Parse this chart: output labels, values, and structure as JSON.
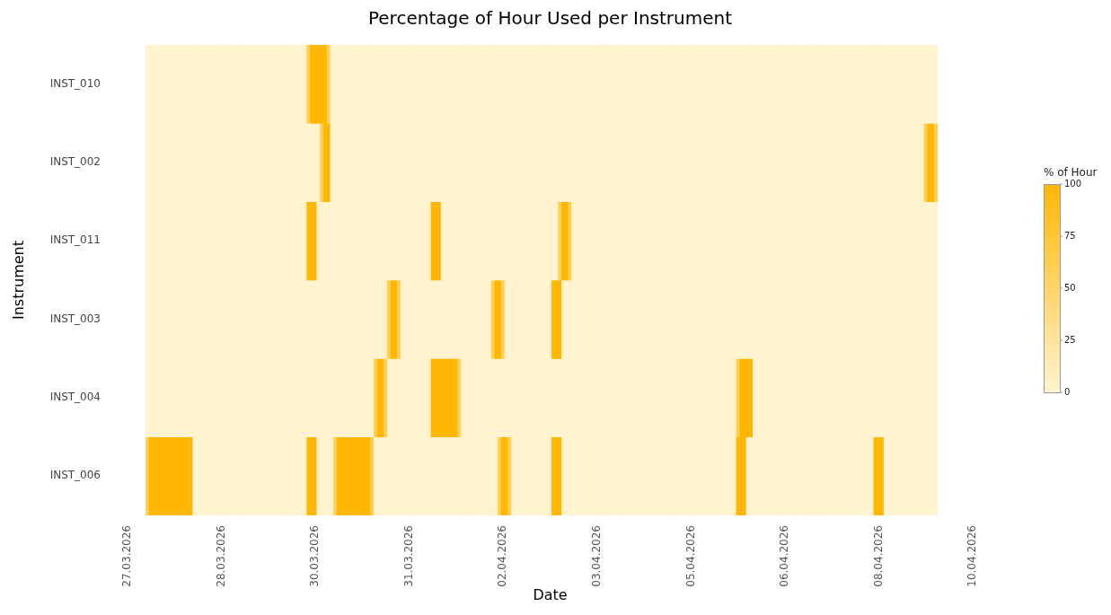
{
  "chart_data": {
    "type": "heatmap",
    "title": "Percentage of Hour Used per Instrument",
    "xlabel": "Date",
    "ylabel": "Instrument",
    "clabel": "% of Hour",
    "categories": [
      "27.03.2026",
      null,
      null,
      null,
      null,
      null,
      null,
      null,
      null,
      null,
      null,
      null,
      null,
      null,
      null,
      null,
      null,
      null,
      null,
      null,
      null,
      null,
      null,
      null,
      null,
      null,
      null,
      null,
      "28.03.2026",
      null,
      null,
      null,
      null,
      null,
      null,
      null,
      null,
      null,
      null,
      null,
      null,
      null,
      null,
      null,
      null,
      null,
      null,
      null,
      null,
      null,
      null,
      null,
      null,
      null,
      null,
      null,
      "30.03.2026",
      null,
      null,
      null,
      null,
      null,
      null,
      null,
      null,
      null,
      null,
      null,
      null,
      null,
      null,
      null,
      null,
      null,
      null,
      null,
      null,
      null,
      null,
      null,
      null,
      null,
      null,
      null,
      "31.03.2026",
      null,
      null,
      null,
      null,
      null,
      null,
      null,
      null,
      null,
      null,
      null,
      null,
      null,
      null,
      null,
      null,
      null,
      null,
      null,
      null,
      null,
      null,
      null,
      null,
      null,
      null,
      null,
      "02.04.2026",
      null,
      null,
      null,
      null,
      null,
      null,
      null,
      null,
      null,
      null,
      null,
      null,
      null,
      null,
      null,
      null,
      null,
      null,
      null,
      null,
      null,
      null,
      null,
      null,
      null,
      null,
      null,
      "03.04.2026",
      null,
      null,
      null,
      null,
      null,
      null,
      null,
      null,
      null,
      null,
      null,
      null,
      null,
      null,
      null,
      null,
      null,
      null,
      null,
      null,
      null,
      null,
      null,
      null,
      null,
      null,
      null,
      "05.04.2026",
      null,
      null,
      null,
      null,
      null,
      null,
      null,
      null,
      null,
      null,
      null,
      null,
      null,
      null,
      null,
      null,
      null,
      null,
      null,
      null,
      null,
      null,
      null,
      null,
      null,
      null,
      null,
      "06.04.2026",
      null,
      null,
      null,
      null,
      null,
      null,
      null,
      null,
      null,
      null,
      null,
      null,
      null,
      null,
      null,
      null,
      null,
      null,
      null,
      null,
      null,
      null,
      null,
      null,
      null,
      null,
      null,
      "08.04.2026",
      null,
      null,
      null,
      null,
      null,
      null,
      null,
      null,
      null,
      null,
      null,
      null,
      null,
      null,
      null,
      null,
      null,
      null,
      null,
      null,
      null,
      null,
      null,
      null,
      null,
      null,
      null,
      "10.04.2026"
    ],
    "y_categories": [
      "INST_010",
      "INST_002",
      "INST_011",
      "INST_003",
      "INST_004",
      "INST_006"
    ],
    "clim": [
      0,
      100
    ],
    "cticks": [
      0,
      25,
      50,
      75,
      100
    ],
    "cells": [
      [
        null,
        null,
        null,
        null,
        null,
        null,
        0,
        0,
        0,
        0,
        0,
        0,
        0,
        0,
        0,
        0,
        0,
        0,
        0,
        0,
        0,
        0,
        0,
        0,
        0,
        0,
        0,
        0,
        0,
        0,
        0,
        0,
        0,
        0,
        0,
        0,
        0,
        0,
        0,
        0,
        0,
        0,
        0,
        0,
        0,
        0,
        0,
        0,
        0,
        0,
        0,
        0,
        0,
        0,
        60,
        100,
        100,
        100,
        100,
        100,
        60,
        0,
        0,
        0,
        0,
        0,
        0,
        0,
        0,
        0,
        0,
        0,
        0,
        0,
        0,
        0,
        0,
        0,
        0,
        0,
        0,
        0,
        0,
        0,
        0,
        0,
        0,
        0,
        0,
        0,
        0,
        0,
        0,
        0,
        0,
        0,
        0,
        0,
        0,
        0,
        0,
        0,
        0,
        0,
        0,
        0,
        0,
        0,
        0,
        0,
        0,
        0,
        0,
        0,
        0,
        0,
        0,
        0,
        0,
        0,
        0,
        0,
        0,
        0,
        0,
        0,
        0,
        0,
        0,
        0,
        0,
        0,
        0,
        0,
        0,
        0,
        0,
        0,
        0,
        0,
        0,
        0,
        0,
        0,
        0,
        0,
        0,
        0,
        0,
        0,
        0,
        0,
        0,
        0,
        0,
        0,
        0,
        0,
        0,
        0,
        0,
        0,
        0,
        0,
        0,
        0,
        0,
        0,
        0,
        0,
        0,
        0,
        0,
        0,
        0,
        0,
        0,
        0,
        0,
        0,
        0,
        0,
        0,
        0,
        0,
        0,
        0,
        0,
        0,
        0,
        0,
        0,
        0,
        0,
        0,
        0,
        0,
        0,
        0,
        0,
        0,
        0,
        0,
        0,
        0,
        0,
        0,
        0,
        0,
        0,
        0,
        0,
        0,
        0,
        0,
        0,
        0,
        0,
        0,
        0,
        0,
        0,
        0,
        0,
        0,
        0,
        0,
        0,
        0,
        0,
        0,
        0,
        0,
        0,
        0,
        0,
        0,
        0,
        0,
        0,
        0,
        0,
        null,
        null,
        null,
        null,
        null,
        null,
        null,
        null,
        null,
        null,
        null
      ],
      [
        null,
        null,
        null,
        null,
        null,
        null,
        0,
        0,
        0,
        0,
        0,
        0,
        0,
        0,
        0,
        0,
        0,
        0,
        0,
        0,
        0,
        0,
        0,
        0,
        0,
        0,
        0,
        0,
        0,
        0,
        0,
        0,
        0,
        0,
        0,
        0,
        0,
        0,
        0,
        0,
        0,
        0,
        0,
        0,
        0,
        0,
        0,
        0,
        0,
        0,
        0,
        0,
        0,
        0,
        0,
        0,
        0,
        0,
        60,
        100,
        100,
        0,
        0,
        0,
        0,
        0,
        0,
        0,
        0,
        0,
        0,
        0,
        0,
        0,
        0,
        0,
        0,
        0,
        0,
        0,
        0,
        0,
        0,
        0,
        0,
        0,
        0,
        0,
        0,
        0,
        0,
        0,
        0,
        0,
        0,
        0,
        0,
        0,
        0,
        0,
        0,
        0,
        0,
        0,
        0,
        0,
        0,
        0,
        0,
        0,
        0,
        0,
        0,
        0,
        0,
        0,
        0,
        0,
        0,
        0,
        0,
        0,
        0,
        0,
        0,
        0,
        0,
        0,
        0,
        0,
        0,
        0,
        0,
        0,
        0,
        0,
        0,
        0,
        0,
        0,
        0,
        0,
        0,
        0,
        0,
        0,
        0,
        0,
        0,
        0,
        0,
        0,
        0,
        0,
        0,
        0,
        0,
        0,
        0,
        0,
        0,
        0,
        0,
        0,
        0,
        0,
        0,
        0,
        0,
        0,
        0,
        0,
        0,
        0,
        0,
        0,
        0,
        0,
        0,
        0,
        0,
        0,
        0,
        0,
        0,
        0,
        0,
        0,
        0,
        0,
        0,
        0,
        0,
        0,
        0,
        0,
        0,
        0,
        0,
        0,
        0,
        0,
        0,
        0,
        0,
        0,
        0,
        0,
        0,
        0,
        0,
        0,
        0,
        0,
        0,
        0,
        0,
        0,
        0,
        0,
        0,
        0,
        0,
        0,
        0,
        0,
        0,
        0,
        0,
        0,
        0,
        0,
        0,
        0,
        0,
        0,
        0,
        0,
        60,
        100,
        100,
        60,
        null,
        null,
        null,
        null,
        null,
        null,
        null,
        null,
        null,
        null,
        null
      ],
      [
        null,
        null,
        null,
        null,
        null,
        null,
        0,
        0,
        0,
        0,
        0,
        0,
        0,
        0,
        0,
        0,
        0,
        0,
        0,
        0,
        0,
        0,
        0,
        0,
        0,
        0,
        0,
        0,
        0,
        0,
        0,
        0,
        0,
        0,
        0,
        0,
        0,
        0,
        0,
        0,
        0,
        0,
        0,
        0,
        0,
        0,
        0,
        0,
        0,
        0,
        0,
        0,
        0,
        0,
        100,
        100,
        100,
        0,
        0,
        0,
        0,
        0,
        0,
        0,
        0,
        0,
        0,
        0,
        0,
        0,
        0,
        0,
        0,
        0,
        0,
        0,
        0,
        0,
        0,
        0,
        0,
        0,
        0,
        0,
        0,
        0,
        0,
        0,
        0,
        0,
        0,
        100,
        100,
        100,
        0,
        0,
        0,
        0,
        0,
        0,
        0,
        0,
        0,
        0,
        0,
        0,
        0,
        0,
        0,
        0,
        0,
        0,
        0,
        0,
        0,
        0,
        0,
        0,
        0,
        0,
        0,
        0,
        0,
        0,
        0,
        0,
        0,
        0,
        0,
        60,
        100,
        100,
        60,
        0,
        0,
        0,
        0,
        0,
        0,
        0,
        0,
        0,
        0,
        0,
        0,
        0,
        0,
        0,
        0,
        0,
        0,
        0,
        0,
        0,
        0,
        0,
        0,
        0,
        0,
        0,
        0,
        0,
        0,
        0,
        0,
        0,
        0,
        0,
        0,
        0,
        0,
        0,
        0,
        0,
        0,
        0,
        0,
        0,
        0,
        0,
        0,
        0,
        0,
        0,
        0,
        0,
        0,
        0,
        0,
        0,
        0,
        0,
        0,
        0,
        0,
        0,
        0,
        0,
        0,
        0,
        0,
        0,
        0,
        0,
        0,
        0,
        0,
        0,
        0,
        0,
        0,
        0,
        0,
        0,
        0,
        0,
        0,
        0,
        0,
        0,
        0,
        0,
        0,
        0,
        0,
        0,
        0,
        0,
        0,
        0,
        0,
        0,
        0,
        0,
        0,
        0,
        0,
        0,
        0,
        0,
        0,
        0,
        null,
        null,
        null,
        null,
        null,
        null,
        null,
        null,
        null,
        null,
        null
      ],
      [
        null,
        null,
        null,
        null,
        null,
        null,
        0,
        0,
        0,
        0,
        0,
        0,
        0,
        0,
        0,
        0,
        0,
        0,
        0,
        0,
        0,
        0,
        0,
        0,
        0,
        0,
        0,
        0,
        0,
        0,
        0,
        0,
        0,
        0,
        0,
        0,
        0,
        0,
        0,
        0,
        0,
        0,
        0,
        0,
        0,
        0,
        0,
        0,
        0,
        0,
        0,
        0,
        0,
        0,
        0,
        0,
        0,
        0,
        0,
        0,
        0,
        0,
        0,
        0,
        0,
        0,
        0,
        0,
        0,
        0,
        0,
        0,
        0,
        0,
        0,
        0,
        0,
        0,
        60,
        100,
        100,
        60,
        0,
        0,
        0,
        0,
        0,
        0,
        0,
        0,
        0,
        0,
        0,
        0,
        0,
        0,
        0,
        0,
        0,
        0,
        0,
        0,
        0,
        0,
        0,
        0,
        0,
        0,
        0,
        60,
        100,
        100,
        60,
        0,
        0,
        0,
        0,
        0,
        0,
        0,
        0,
        0,
        0,
        0,
        0,
        0,
        0,
        100,
        100,
        100,
        0,
        0,
        0,
        0,
        0,
        0,
        0,
        0,
        0,
        0,
        0,
        0,
        0,
        0,
        0,
        0,
        0,
        0,
        0,
        0,
        0,
        0,
        0,
        0,
        0,
        0,
        0,
        0,
        0,
        0,
        0,
        0,
        0,
        0,
        0,
        0,
        0,
        0,
        0,
        0,
        0,
        0,
        0,
        0,
        0,
        0,
        0,
        0,
        0,
        0,
        0,
        0,
        0,
        0,
        0,
        0,
        0,
        0,
        0,
        0,
        0,
        0,
        0,
        0,
        0,
        0,
        0,
        0,
        0,
        0,
        0,
        0,
        0,
        0,
        0,
        0,
        0,
        0,
        0,
        0,
        0,
        0,
        0,
        0,
        0,
        0,
        0,
        0,
        0,
        0,
        0,
        0,
        0,
        0,
        0,
        0,
        0,
        0,
        0,
        0,
        0,
        0,
        0,
        0,
        0,
        0,
        0,
        0,
        0,
        0,
        0,
        0,
        null,
        null,
        null,
        null,
        null,
        null,
        null,
        null,
        null,
        null,
        null
      ],
      [
        null,
        null,
        null,
        null,
        null,
        null,
        0,
        0,
        0,
        0,
        0,
        0,
        0,
        0,
        0,
        0,
        0,
        0,
        0,
        0,
        0,
        0,
        0,
        0,
        0,
        0,
        0,
        0,
        0,
        0,
        0,
        0,
        0,
        0,
        0,
        0,
        0,
        0,
        0,
        0,
        0,
        0,
        0,
        0,
        0,
        0,
        0,
        0,
        0,
        0,
        0,
        0,
        0,
        0,
        0,
        0,
        0,
        0,
        0,
        0,
        0,
        0,
        0,
        0,
        0,
        0,
        0,
        0,
        0,
        0,
        0,
        0,
        0,
        0,
        60,
        100,
        100,
        60,
        0,
        0,
        0,
        0,
        0,
        0,
        0,
        0,
        0,
        0,
        0,
        0,
        0,
        100,
        100,
        100,
        100,
        100,
        100,
        100,
        100,
        60,
        0,
        0,
        0,
        0,
        0,
        0,
        0,
        0,
        0,
        0,
        0,
        0,
        0,
        0,
        0,
        0,
        0,
        0,
        0,
        0,
        0,
        0,
        0,
        0,
        0,
        0,
        0,
        0,
        0,
        0,
        0,
        0,
        0,
        0,
        0,
        0,
        0,
        0,
        0,
        0,
        0,
        0,
        0,
        0,
        0,
        0,
        0,
        0,
        0,
        0,
        0,
        0,
        0,
        0,
        0,
        0,
        0,
        0,
        0,
        0,
        0,
        0,
        0,
        0,
        0,
        0,
        0,
        0,
        0,
        0,
        0,
        0,
        0,
        0,
        0,
        0,
        0,
        0,
        0,
        0,
        0,
        0,
        60,
        100,
        100,
        100,
        100,
        0,
        0,
        0,
        0,
        0,
        0,
        0,
        0,
        0,
        0,
        0,
        0,
        0,
        0,
        0,
        0,
        0,
        0,
        0,
        0,
        0,
        0,
        0,
        0,
        0,
        0,
        0,
        0,
        0,
        0,
        0,
        0,
        0,
        0,
        0,
        0,
        0,
        0,
        0,
        0,
        0,
        0,
        0,
        0,
        0,
        0,
        0,
        0,
        0,
        0,
        0,
        0,
        0,
        0,
        0,
        null,
        null,
        null,
        null,
        null,
        null,
        null,
        null,
        null,
        null,
        null
      ],
      [
        null,
        null,
        null,
        null,
        null,
        null,
        60,
        100,
        100,
        100,
        100,
        100,
        100,
        100,
        100,
        100,
        100,
        100,
        100,
        100,
        0,
        0,
        0,
        0,
        0,
        0,
        0,
        0,
        0,
        0,
        0,
        0,
        0,
        0,
        0,
        0,
        0,
        0,
        0,
        0,
        0,
        0,
        0,
        0,
        0,
        0,
        0,
        0,
        0,
        0,
        0,
        0,
        0,
        0,
        100,
        100,
        100,
        0,
        0,
        0,
        0,
        0,
        60,
        100,
        100,
        100,
        100,
        100,
        100,
        100,
        100,
        100,
        100,
        60,
        0,
        0,
        0,
        0,
        0,
        0,
        0,
        0,
        0,
        0,
        0,
        0,
        0,
        0,
        0,
        0,
        0,
        0,
        0,
        0,
        0,
        0,
        0,
        0,
        0,
        0,
        0,
        0,
        0,
        0,
        0,
        0,
        0,
        0,
        0,
        0,
        0,
        60,
        100,
        100,
        60,
        0,
        0,
        0,
        0,
        0,
        0,
        0,
        0,
        0,
        0,
        0,
        0,
        100,
        100,
        100,
        0,
        0,
        0,
        0,
        0,
        0,
        0,
        0,
        0,
        0,
        0,
        0,
        0,
        0,
        0,
        0,
        0,
        0,
        0,
        0,
        0,
        0,
        0,
        0,
        0,
        0,
        0,
        0,
        0,
        0,
        0,
        0,
        0,
        0,
        0,
        0,
        0,
        0,
        0,
        0,
        0,
        0,
        0,
        0,
        0,
        0,
        0,
        0,
        0,
        0,
        0,
        0,
        100,
        100,
        100,
        0,
        0,
        0,
        0,
        0,
        0,
        0,
        0,
        0,
        0,
        0,
        0,
        0,
        0,
        0,
        0,
        0,
        0,
        0,
        0,
        0,
        0,
        0,
        0,
        0,
        0,
        0,
        0,
        0,
        0,
        0,
        0,
        0,
        0,
        0,
        0,
        0,
        0,
        100,
        100,
        100,
        0,
        0,
        0,
        0,
        0,
        0,
        0,
        0,
        0,
        0,
        0,
        0,
        0,
        0,
        0,
        0,
        null,
        null,
        null,
        null,
        null,
        null,
        null,
        null,
        null,
        null,
        null
      ]
    ]
  }
}
